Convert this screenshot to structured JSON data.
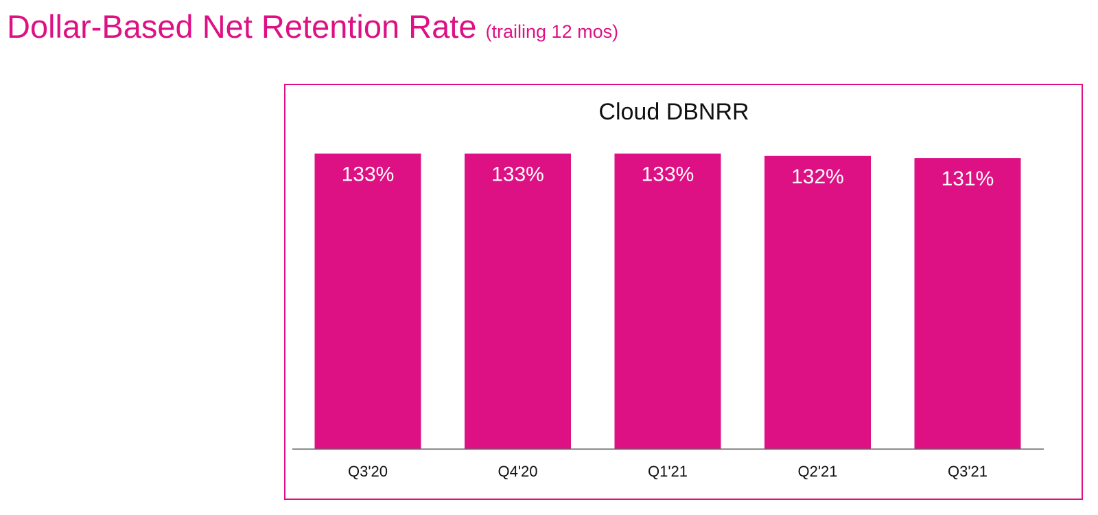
{
  "page": {
    "title": "Dollar-Based Net Retention Rate",
    "subtitle": "(trailing 12 mos)"
  },
  "colors": {
    "accent": "#dd1184",
    "bar": "#dd1184",
    "axis": "#666666",
    "text": "#111111",
    "bar_label": "#ffffff"
  },
  "chart_data": {
    "type": "bar",
    "title": "Cloud DBNRR",
    "categories": [
      "Q3'20",
      "Q4'20",
      "Q1'21",
      "Q2'21",
      "Q3'21"
    ],
    "values": [
      133,
      133,
      133,
      132,
      131
    ],
    "labels": [
      "133%",
      "133%",
      "133%",
      "132%",
      "131%"
    ],
    "xlabel": "",
    "ylabel": "",
    "ylim": [
      0,
      133.5
    ],
    "grid": false,
    "legend": "none"
  }
}
